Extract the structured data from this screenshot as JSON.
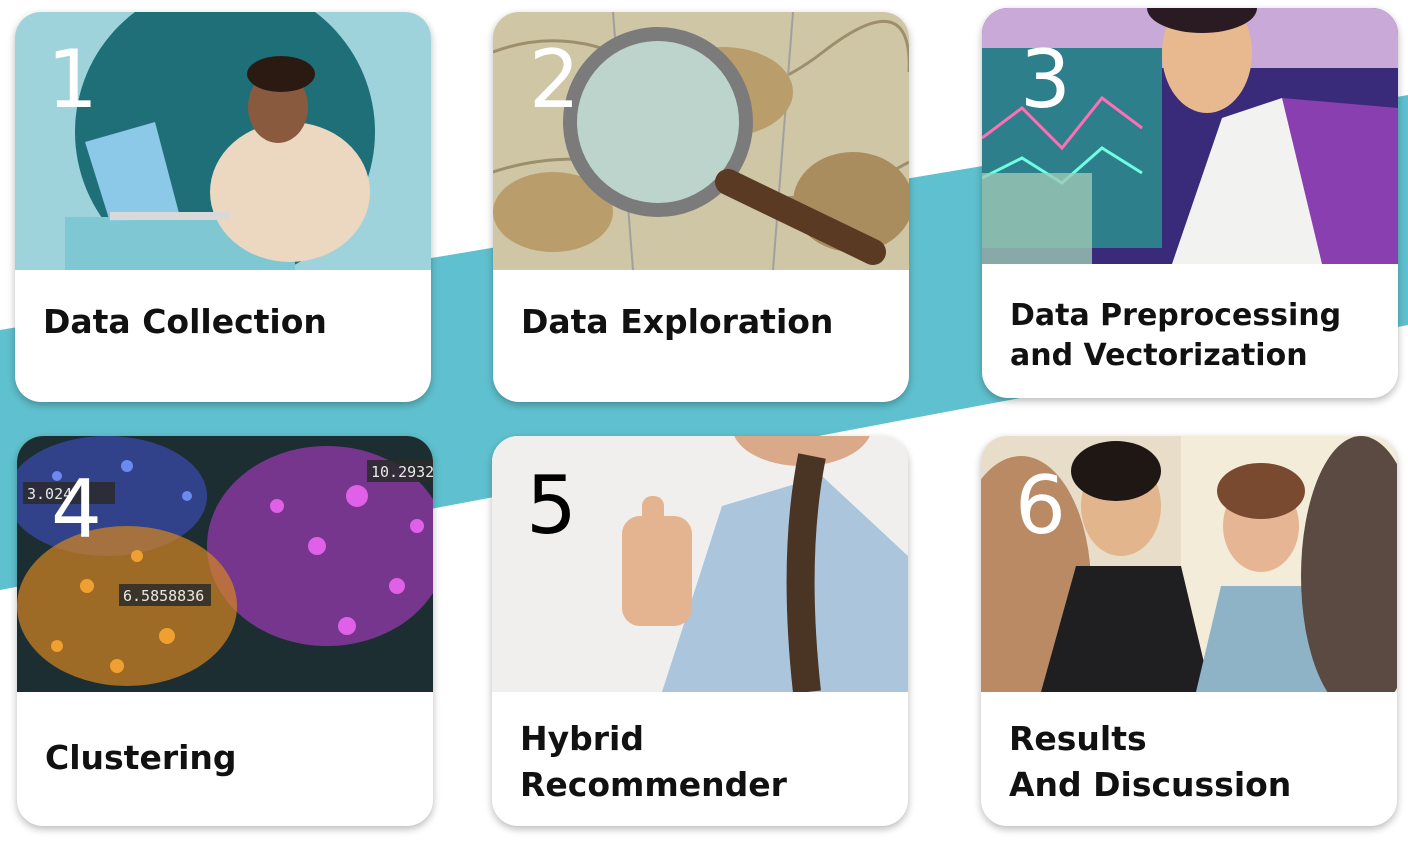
{
  "steps": [
    {
      "number": "1",
      "title_lines": [
        "Data Collection"
      ]
    },
    {
      "number": "2",
      "title_lines": [
        "Data Exploration"
      ]
    },
    {
      "number": "3",
      "title_lines": [
        "Data Preprocessing",
        "and Vectorization"
      ]
    },
    {
      "number": "4",
      "title_lines": [
        "Clustering"
      ]
    },
    {
      "number": "5",
      "title_lines": [
        "Hybrid",
        "Recommender"
      ]
    },
    {
      "number": "6",
      "title_lines": [
        "Results",
        "And Discussion"
      ]
    }
  ],
  "photo_texts": {
    "cluster_value_1": "3.024",
    "cluster_value_2": "10.2932",
    "cluster_value_3": "6.5858836"
  },
  "colors": {
    "ribbon": "#5fc1cf",
    "card_background": "#ffffff",
    "label_text": "#111111"
  }
}
